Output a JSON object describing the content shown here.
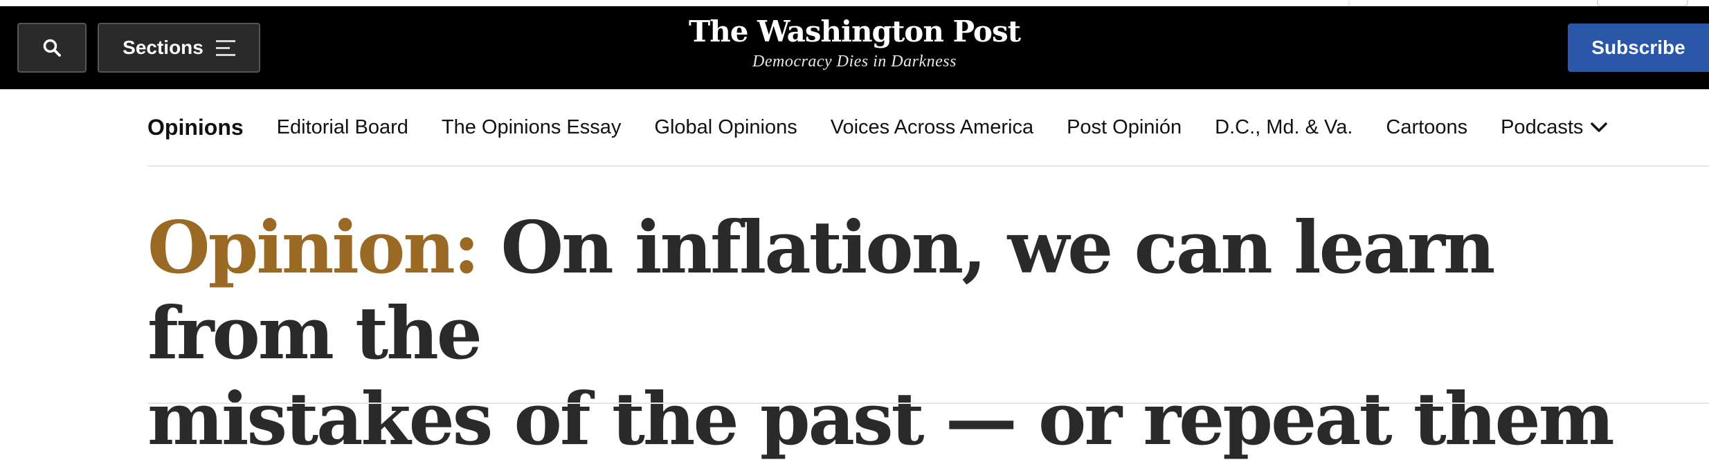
{
  "header": {
    "sections_label": "Sections",
    "logo": "The Washington Post",
    "tagline": "Democracy Dies in Darkness",
    "subscribe_label": "Subscribe",
    "subscribe_color": "#2a57a8"
  },
  "nav": {
    "items": [
      "Opinions",
      "Editorial Board",
      "The Opinions Essay",
      "Global Opinions",
      "Voices Across America",
      "Post Opinión",
      "D.C., Md. & Va.",
      "Cartoons",
      "Podcasts"
    ]
  },
  "article": {
    "kicker": "Opinion:",
    "kicker_color": "#9a6a25",
    "title_line1": "On inflation, we can learn from the",
    "title_line2": "mistakes of the past — or repeat them"
  },
  "icons": [
    "search-icon",
    "menu-icon",
    "chevron-down-icon"
  ]
}
